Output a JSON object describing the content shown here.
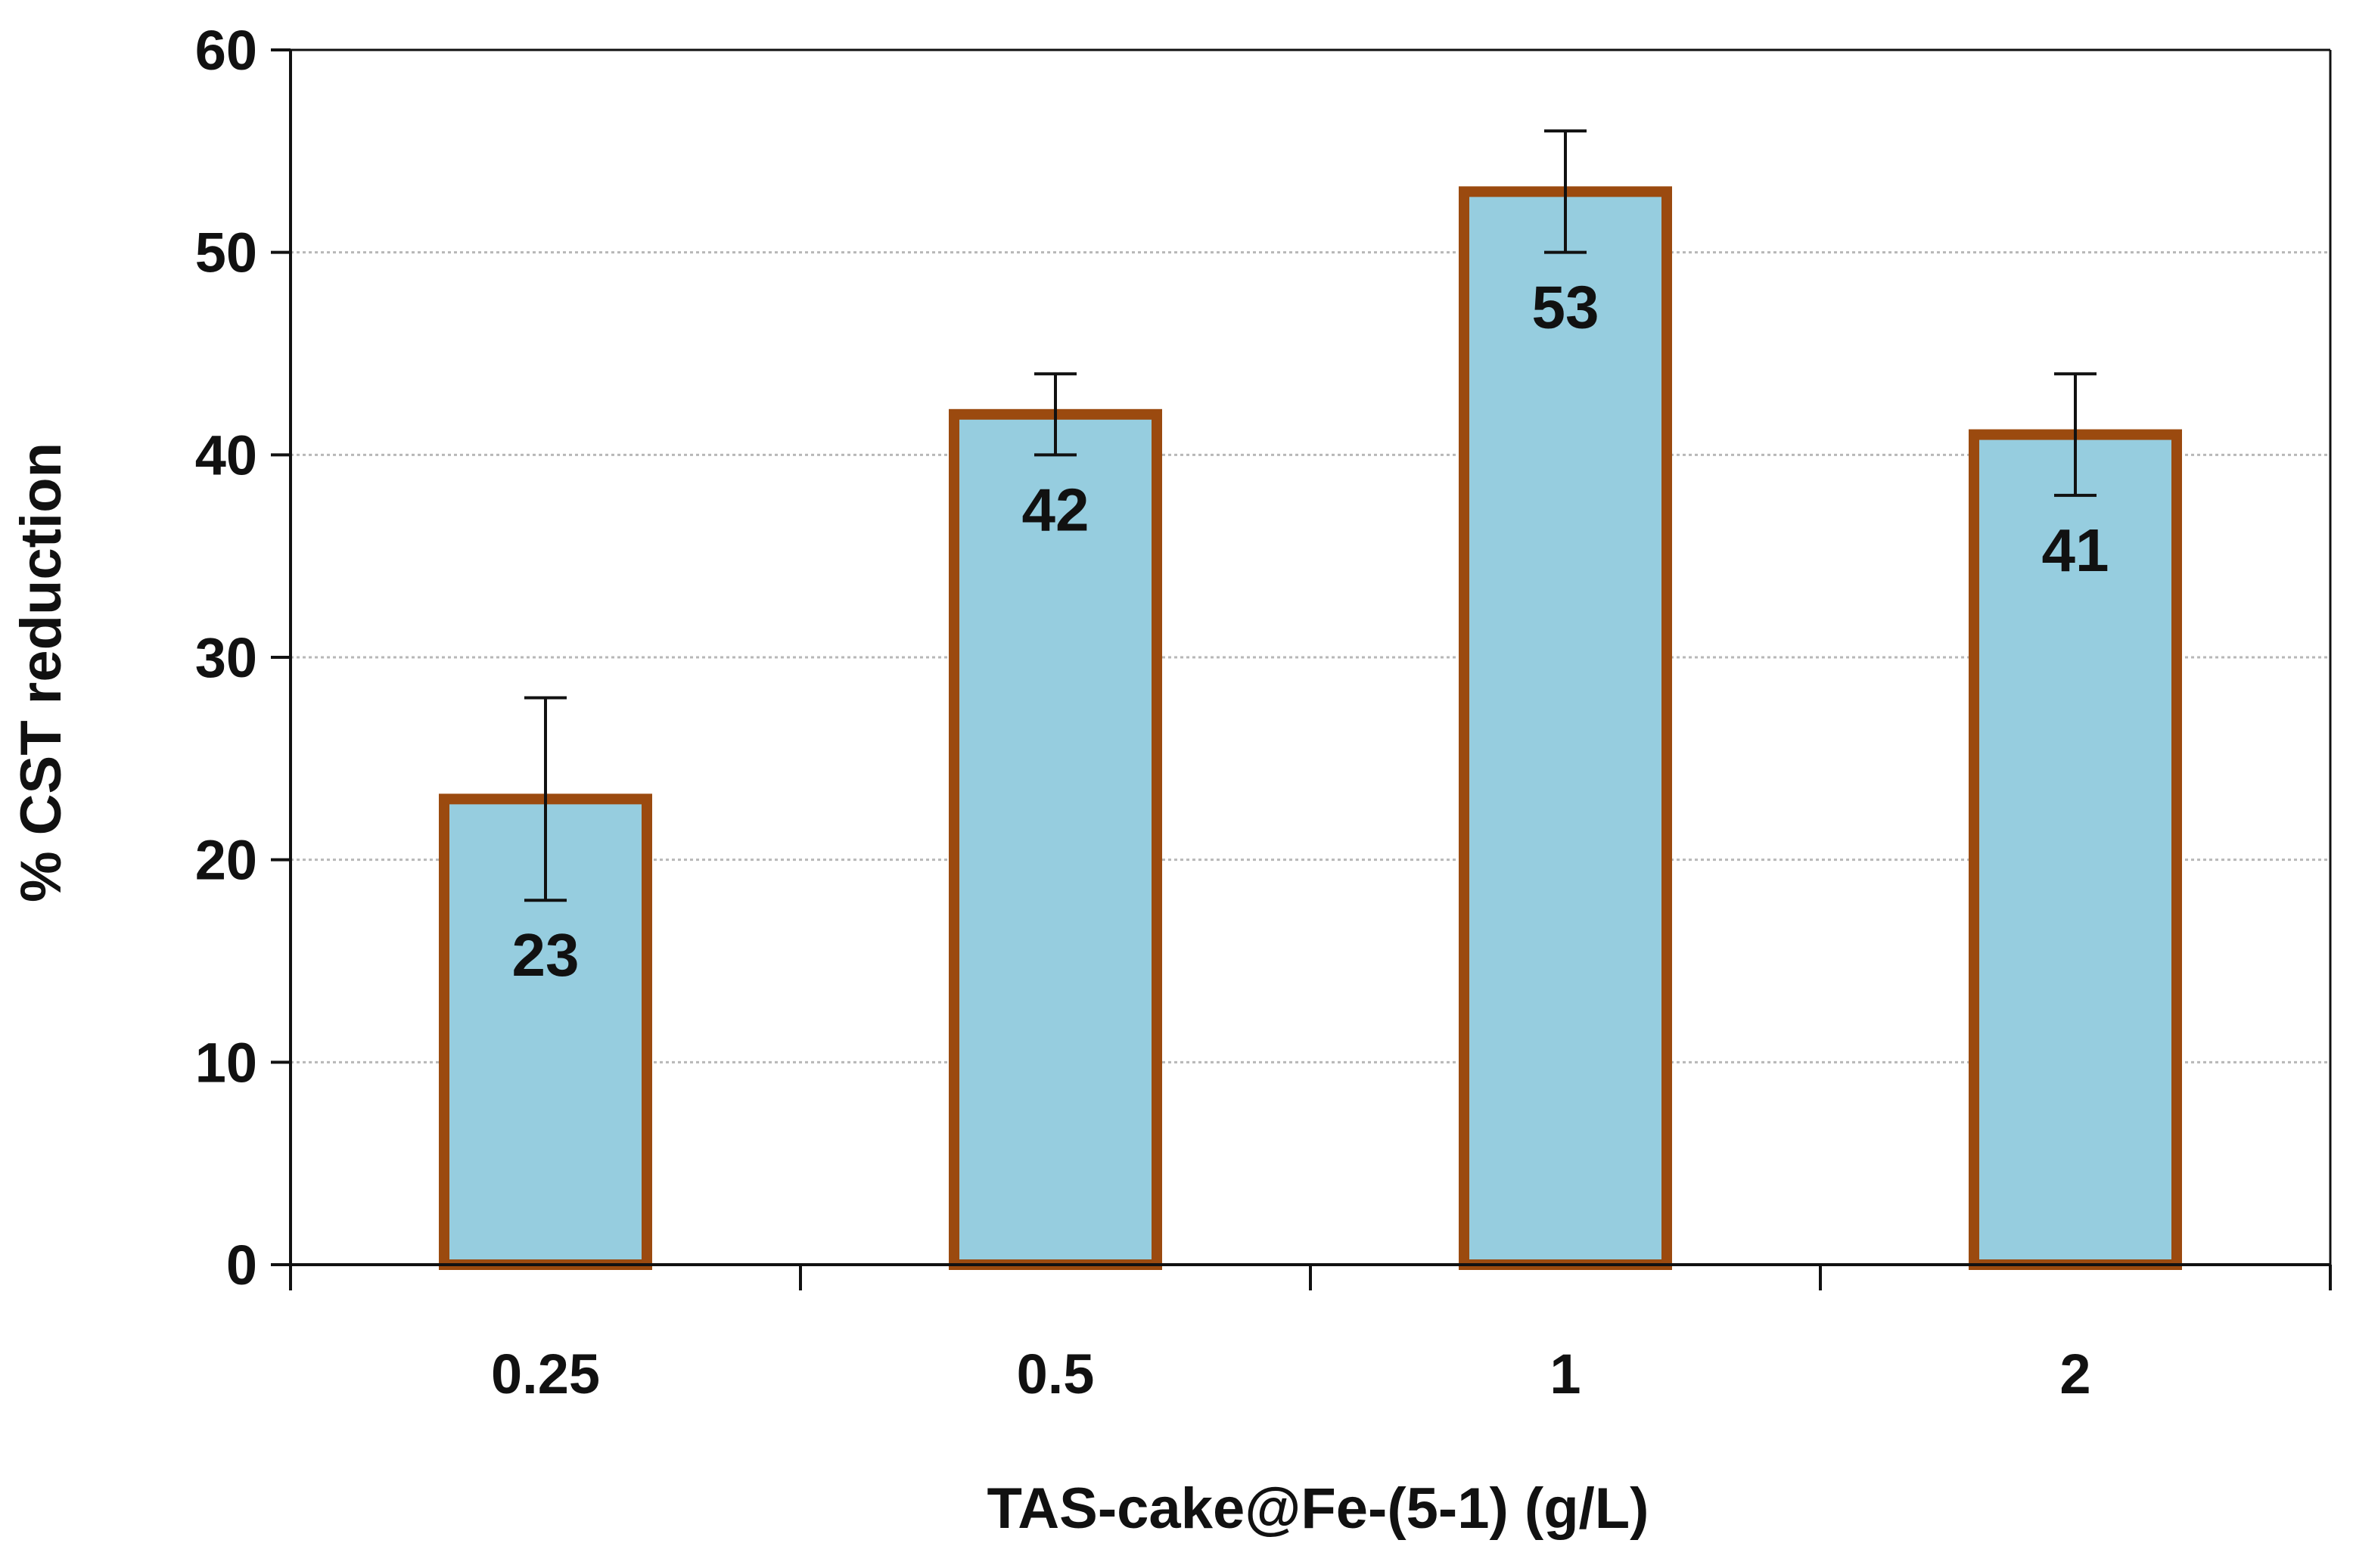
{
  "chart_data": {
    "type": "bar",
    "title": "",
    "xlabel": "TAS-cake@Fe-(5-1) (g/L)",
    "ylabel": "% CST reduction",
    "categories": [
      "0.25",
      "0.5",
      "1",
      "2"
    ],
    "values": [
      23,
      42,
      53,
      41
    ],
    "error_low": [
      18,
      40,
      50,
      38
    ],
    "error_high": [
      28,
      44,
      56,
      44
    ],
    "data_labels": [
      "23",
      "42",
      "53",
      "41"
    ],
    "ylim": [
      0,
      60
    ],
    "yticks": [
      0,
      10,
      20,
      30,
      40,
      50,
      60
    ],
    "ytick_labels": [
      "0",
      "10",
      "20",
      "30",
      "40",
      "50",
      "60"
    ],
    "grid": true,
    "legend": "none",
    "colors": {
      "bar_fill": "#96cddf",
      "bar_edge": "#9b4a0f",
      "axis": "#111111",
      "grid": "#b8b8b8",
      "error_bar": "#111111"
    }
  }
}
